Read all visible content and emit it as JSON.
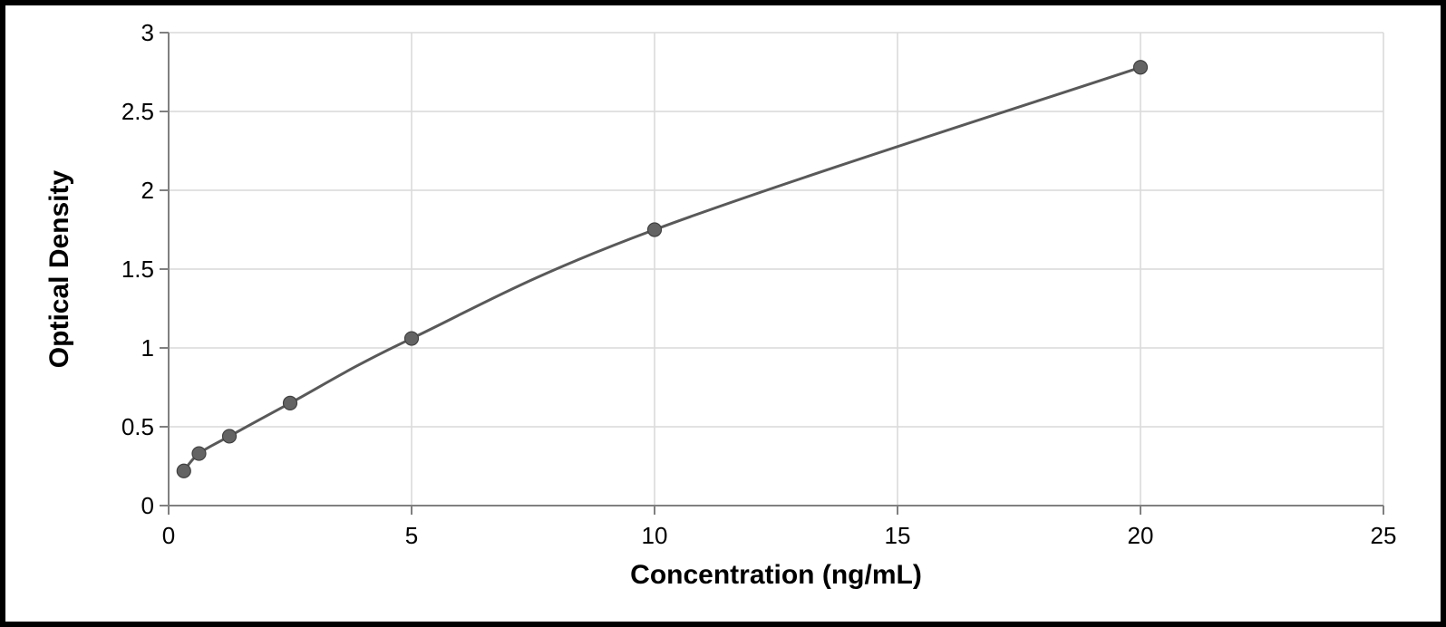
{
  "chart": {
    "type": "scatter-line",
    "xlabel": "Concentration (ng/mL)",
    "ylabel": "Optical Density",
    "xlabel_fontsize": 30,
    "ylabel_fontsize": 30,
    "xlabel_fontweight": "700",
    "ylabel_fontweight": "700",
    "tick_fontsize": 26,
    "tick_fontweight": "400",
    "xlim": [
      0,
      25
    ],
    "ylim": [
      0,
      3
    ],
    "xtick_step": 5,
    "ytick_step": 0.5,
    "xticks": [
      0,
      5,
      10,
      15,
      20,
      25
    ],
    "yticks": [
      0,
      0.5,
      1,
      1.5,
      2,
      2.5,
      3
    ],
    "background_color": "#ffffff",
    "grid_color": "#d9d9d9",
    "grid_width": 1.5,
    "axis_line_color": "#808080",
    "axis_line_width": 2,
    "line_color": "#595959",
    "line_width": 3,
    "marker_fill": "#636363",
    "marker_stroke": "#404040",
    "marker_stroke_width": 1.2,
    "marker_radius": 7.5,
    "outer_border_color": "#000000",
    "outer_border_width": 6,
    "data": {
      "x": [
        0.313,
        0.625,
        1.25,
        2.5,
        5,
        10,
        20
      ],
      "y": [
        0.22,
        0.33,
        0.44,
        0.65,
        1.06,
        1.75,
        2.78
      ]
    }
  }
}
